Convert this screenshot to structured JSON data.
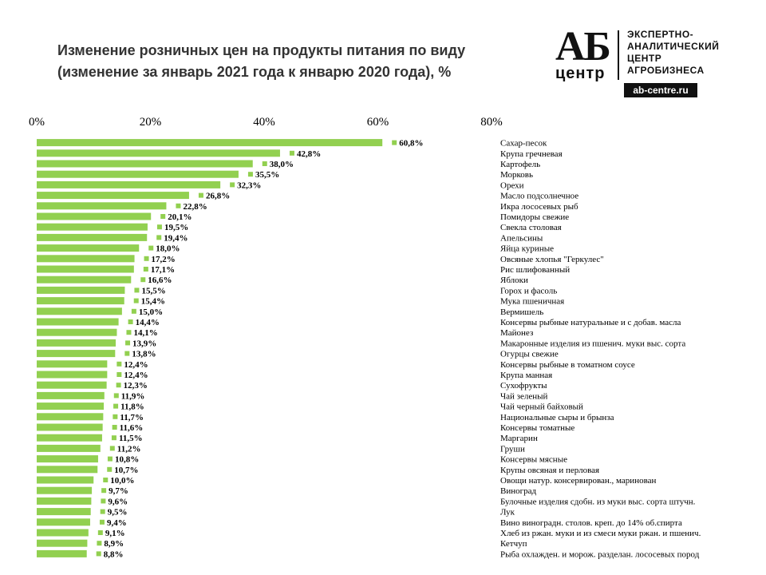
{
  "chart_data": {
    "type": "bar",
    "orientation": "horizontal",
    "title_line1": "Изменение розничных  цен на продукты  питания по виду",
    "title_line2": "(изменение за январь 2021 года к январю 2020 года), %",
    "xlim": [
      0,
      80
    ],
    "xticks": [
      "0%",
      "20%",
      "40%",
      "60%",
      "80%"
    ],
    "bar_color": "#92d050",
    "categories": [
      "Сахар-песок",
      "Крупа гречневая",
      "Картофель",
      "Морковь",
      "Орехи",
      "Масло подсолнечное",
      "Икра лососевых рыб",
      "Помидоры свежие",
      "Свекла столовая",
      "Апельсины",
      "Яйца куриные",
      "Овсяные хлопья \"Геркулес\"",
      "Рис шлифованный",
      "Яблоки",
      "Горох и фасоль",
      "Мука пшеничная",
      "Вермишель",
      "Консервы рыбные натуральные и с добав. масла",
      "Майонез",
      "Макаронные изделия из пшенич. муки выс. сорта",
      "Огурцы свежие",
      "Консервы рыбные в томатном соусе",
      "Крупа манная",
      "Сухофрукты",
      "Чай зеленый",
      "Чай черный байховый",
      "Национальные сыры и брынза",
      "Консервы томатные",
      "Маргарин",
      "Груши",
      "Консервы мясные",
      "Крупы овсяная и перловая",
      "Овощи натур. консервирован., маринован",
      "Виноград",
      "Булочные изделия сдобн. из муки выс. сорта штучн.",
      "Лук",
      "Вино виноградн. столов. креп. до 14% об.спирта",
      "Хлеб из ржан. муки и из смеси муки ржан. и пшенич.",
      "Кетчуп",
      "Рыба охлажден.  и морож. разделан. лососевых пород"
    ],
    "values": [
      60.8,
      42.8,
      38.0,
      35.5,
      32.3,
      26.8,
      22.8,
      20.1,
      19.5,
      19.4,
      18.0,
      17.2,
      17.1,
      16.6,
      15.5,
      15.4,
      15.0,
      14.4,
      14.1,
      13.9,
      13.8,
      12.4,
      12.4,
      12.3,
      11.9,
      11.8,
      11.7,
      11.6,
      11.5,
      11.2,
      10.8,
      10.7,
      10.0,
      9.7,
      9.6,
      9.5,
      9.4,
      9.1,
      8.9,
      8.8
    ],
    "value_labels": [
      "60,8%",
      "42,8%",
      "38,0%",
      "35,5%",
      "32,3%",
      "26,8%",
      "22,8%",
      "20,1%",
      "19,5%",
      "19,4%",
      "18,0%",
      "17,2%",
      "17,1%",
      "16,6%",
      "15,5%",
      "15,4%",
      "15,0%",
      "14,4%",
      "14,1%",
      "13,9%",
      "13,8%",
      "12,4%",
      "12,4%",
      "12,3%",
      "11,9%",
      "11,8%",
      "11,7%",
      "11,6%",
      "11,5%",
      "11,2%",
      "10,8%",
      "10,7%",
      "10,0%",
      "9,7%",
      "9,6%",
      "9,5%",
      "9,4%",
      "9,1%",
      "8,9%",
      "8,8%"
    ]
  },
  "logo": {
    "ab": "АБ",
    "centr": "центр",
    "line1": "ЭКСПЕРТНО-",
    "line2": "АНАЛИТИЧЕСКИЙ",
    "line3": "ЦЕНТР",
    "line4": "АГРОБИЗНЕСА",
    "site": "ab-centre.ru"
  }
}
